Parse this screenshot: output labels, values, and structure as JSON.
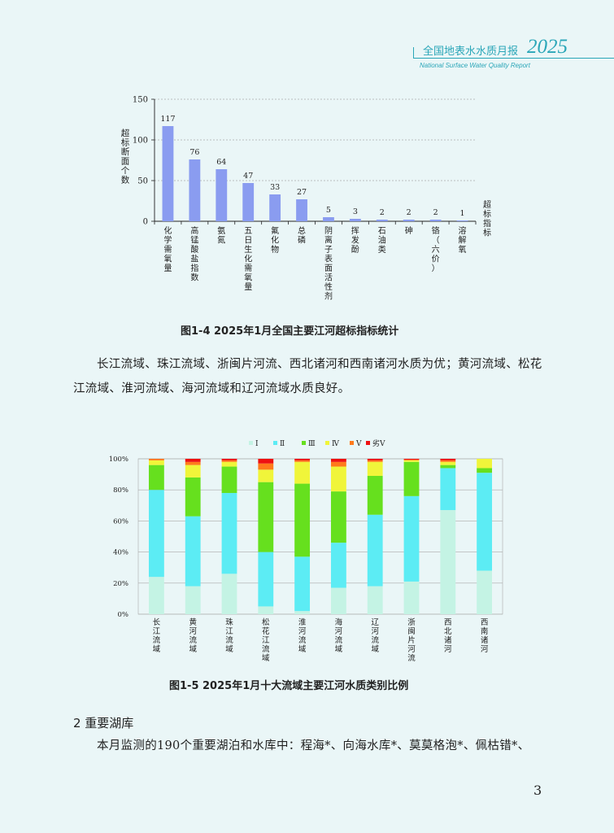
{
  "header": {
    "title": "全国地表水水质月报",
    "year": "2025",
    "subtitle": "National Surface Water Quality Report"
  },
  "figure1": {
    "caption": "图1-4  2025年1月全国主要江河超标指标统计",
    "chart_data": {
      "type": "bar",
      "ylabel": "超标断面个数",
      "xlabel": "超标指标",
      "ylim": [
        0,
        150
      ],
      "yticks": [
        0,
        50,
        100,
        150
      ],
      "categories": [
        "化学需氧量",
        "高锰酸盐指数",
        "氨氮",
        "五日生化需氧量",
        "氟化物",
        "总磷",
        "阴离子表面活性剂",
        "挥发酚",
        "石油类",
        "砷",
        "铬（六价）",
        "溶解氧"
      ],
      "values": [
        117,
        76,
        64,
        47,
        33,
        27,
        5,
        3,
        2,
        2,
        2,
        1
      ],
      "bar_color": "#8a9cf0",
      "grid": "dashed"
    }
  },
  "paragraph1": "长江流域、珠江流域、浙闽片河流、西北诸河和西南诸河水质为优；黄河流域、松花江流域、淮河流域、海河流域和辽河流域水质良好。",
  "figure2": {
    "caption": "图1-5  2025年1月十大流域主要江河水质类别比例",
    "chart_data": {
      "type": "bar",
      "stacked": true,
      "ylim": [
        0,
        100
      ],
      "yticks": [
        "0%",
        "20%",
        "40%",
        "60%",
        "80%",
        "100%"
      ],
      "categories": [
        "长江流域",
        "黄河流域",
        "珠江流域",
        "松花江流域",
        "淮河流域",
        "海河流域",
        "辽河流域",
        "浙闽片河流",
        "西北诸河",
        "西南诸河"
      ],
      "series": [
        {
          "name": "Ⅰ",
          "color": "#c4f3e4",
          "values": [
            24,
            18,
            26,
            5,
            2,
            17,
            18,
            21,
            67,
            28
          ]
        },
        {
          "name": "Ⅱ",
          "color": "#5cecf4",
          "values": [
            56,
            45,
            52,
            35,
            35,
            29,
            46,
            55,
            27,
            63
          ]
        },
        {
          "name": "Ⅲ",
          "color": "#66e01e",
          "values": [
            16,
            25,
            17,
            45,
            47,
            33,
            25,
            22,
            2,
            3
          ]
        },
        {
          "name": "Ⅳ",
          "color": "#f0f53a",
          "values": [
            3,
            8,
            3,
            8,
            14,
            16,
            9,
            1,
            2,
            6
          ]
        },
        {
          "name": "Ⅴ",
          "color": "#ff7a1c",
          "values": [
            1,
            2,
            1,
            4,
            1,
            3,
            1,
            0.5,
            1,
            0
          ]
        },
        {
          "name": "劣Ⅴ",
          "color": "#ee1111",
          "values": [
            0,
            2,
            1,
            3,
            1,
            2,
            1,
            0.5,
            1,
            0
          ]
        }
      ],
      "grid": "solid",
      "legend": "top"
    }
  },
  "section": {
    "heading": "2 重要湖库",
    "text": "本月监测的190个重要湖泊和水库中：程海*、向海水库*、莫莫格泡*、佩枯错*、"
  },
  "page_number": "3"
}
